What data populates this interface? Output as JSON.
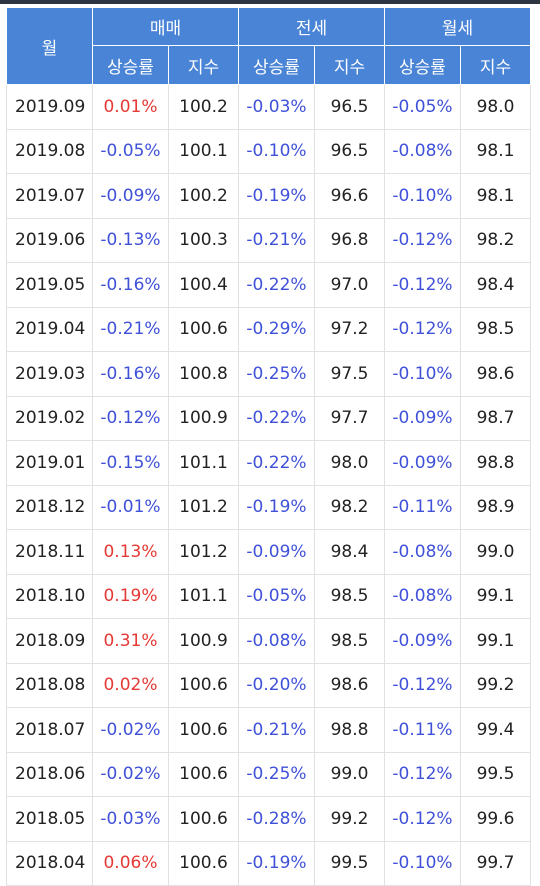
{
  "header": {
    "month_label": "월",
    "groups": [
      "매매",
      "전세",
      "월세"
    ],
    "rate_label": "상승률",
    "index_label": "지수"
  },
  "colors": {
    "header_bg": "#4a84d6",
    "positive": "#e53935",
    "negative": "#3f51d8"
  },
  "rows": [
    {
      "month": "2019.09",
      "sale_rate": "0.01%",
      "sale_idx": "100.2",
      "jeonse_rate": "-0.03%",
      "jeonse_idx": "96.5",
      "wolse_rate": "-0.05%",
      "wolse_idx": "98.0"
    },
    {
      "month": "2019.08",
      "sale_rate": "-0.05%",
      "sale_idx": "100.1",
      "jeonse_rate": "-0.10%",
      "jeonse_idx": "96.5",
      "wolse_rate": "-0.08%",
      "wolse_idx": "98.1"
    },
    {
      "month": "2019.07",
      "sale_rate": "-0.09%",
      "sale_idx": "100.2",
      "jeonse_rate": "-0.19%",
      "jeonse_idx": "96.6",
      "wolse_rate": "-0.10%",
      "wolse_idx": "98.1"
    },
    {
      "month": "2019.06",
      "sale_rate": "-0.13%",
      "sale_idx": "100.3",
      "jeonse_rate": "-0.21%",
      "jeonse_idx": "96.8",
      "wolse_rate": "-0.12%",
      "wolse_idx": "98.2"
    },
    {
      "month": "2019.05",
      "sale_rate": "-0.16%",
      "sale_idx": "100.4",
      "jeonse_rate": "-0.22%",
      "jeonse_idx": "97.0",
      "wolse_rate": "-0.12%",
      "wolse_idx": "98.4"
    },
    {
      "month": "2019.04",
      "sale_rate": "-0.21%",
      "sale_idx": "100.6",
      "jeonse_rate": "-0.29%",
      "jeonse_idx": "97.2",
      "wolse_rate": "-0.12%",
      "wolse_idx": "98.5"
    },
    {
      "month": "2019.03",
      "sale_rate": "-0.16%",
      "sale_idx": "100.8",
      "jeonse_rate": "-0.25%",
      "jeonse_idx": "97.5",
      "wolse_rate": "-0.10%",
      "wolse_idx": "98.6"
    },
    {
      "month": "2019.02",
      "sale_rate": "-0.12%",
      "sale_idx": "100.9",
      "jeonse_rate": "-0.22%",
      "jeonse_idx": "97.7",
      "wolse_rate": "-0.09%",
      "wolse_idx": "98.7"
    },
    {
      "month": "2019.01",
      "sale_rate": "-0.15%",
      "sale_idx": "101.1",
      "jeonse_rate": "-0.22%",
      "jeonse_idx": "98.0",
      "wolse_rate": "-0.09%",
      "wolse_idx": "98.8"
    },
    {
      "month": "2018.12",
      "sale_rate": "-0.01%",
      "sale_idx": "101.2",
      "jeonse_rate": "-0.19%",
      "jeonse_idx": "98.2",
      "wolse_rate": "-0.11%",
      "wolse_idx": "98.9"
    },
    {
      "month": "2018.11",
      "sale_rate": "0.13%",
      "sale_idx": "101.2",
      "jeonse_rate": "-0.09%",
      "jeonse_idx": "98.4",
      "wolse_rate": "-0.08%",
      "wolse_idx": "99.0"
    },
    {
      "month": "2018.10",
      "sale_rate": "0.19%",
      "sale_idx": "101.1",
      "jeonse_rate": "-0.05%",
      "jeonse_idx": "98.5",
      "wolse_rate": "-0.08%",
      "wolse_idx": "99.1"
    },
    {
      "month": "2018.09",
      "sale_rate": "0.31%",
      "sale_idx": "100.9",
      "jeonse_rate": "-0.08%",
      "jeonse_idx": "98.5",
      "wolse_rate": "-0.09%",
      "wolse_idx": "99.1"
    },
    {
      "month": "2018.08",
      "sale_rate": "0.02%",
      "sale_idx": "100.6",
      "jeonse_rate": "-0.20%",
      "jeonse_idx": "98.6",
      "wolse_rate": "-0.12%",
      "wolse_idx": "99.2"
    },
    {
      "month": "2018.07",
      "sale_rate": "-0.02%",
      "sale_idx": "100.6",
      "jeonse_rate": "-0.21%",
      "jeonse_idx": "98.8",
      "wolse_rate": "-0.11%",
      "wolse_idx": "99.4"
    },
    {
      "month": "2018.06",
      "sale_rate": "-0.02%",
      "sale_idx": "100.6",
      "jeonse_rate": "-0.25%",
      "jeonse_idx": "99.0",
      "wolse_rate": "-0.12%",
      "wolse_idx": "99.5"
    },
    {
      "month": "2018.05",
      "sale_rate": "-0.03%",
      "sale_idx": "100.6",
      "jeonse_rate": "-0.28%",
      "jeonse_idx": "99.2",
      "wolse_rate": "-0.12%",
      "wolse_idx": "99.6"
    },
    {
      "month": "2018.04",
      "sale_rate": "0.06%",
      "sale_idx": "100.6",
      "jeonse_rate": "-0.19%",
      "jeonse_idx": "99.5",
      "wolse_rate": "-0.10%",
      "wolse_idx": "99.7"
    }
  ]
}
